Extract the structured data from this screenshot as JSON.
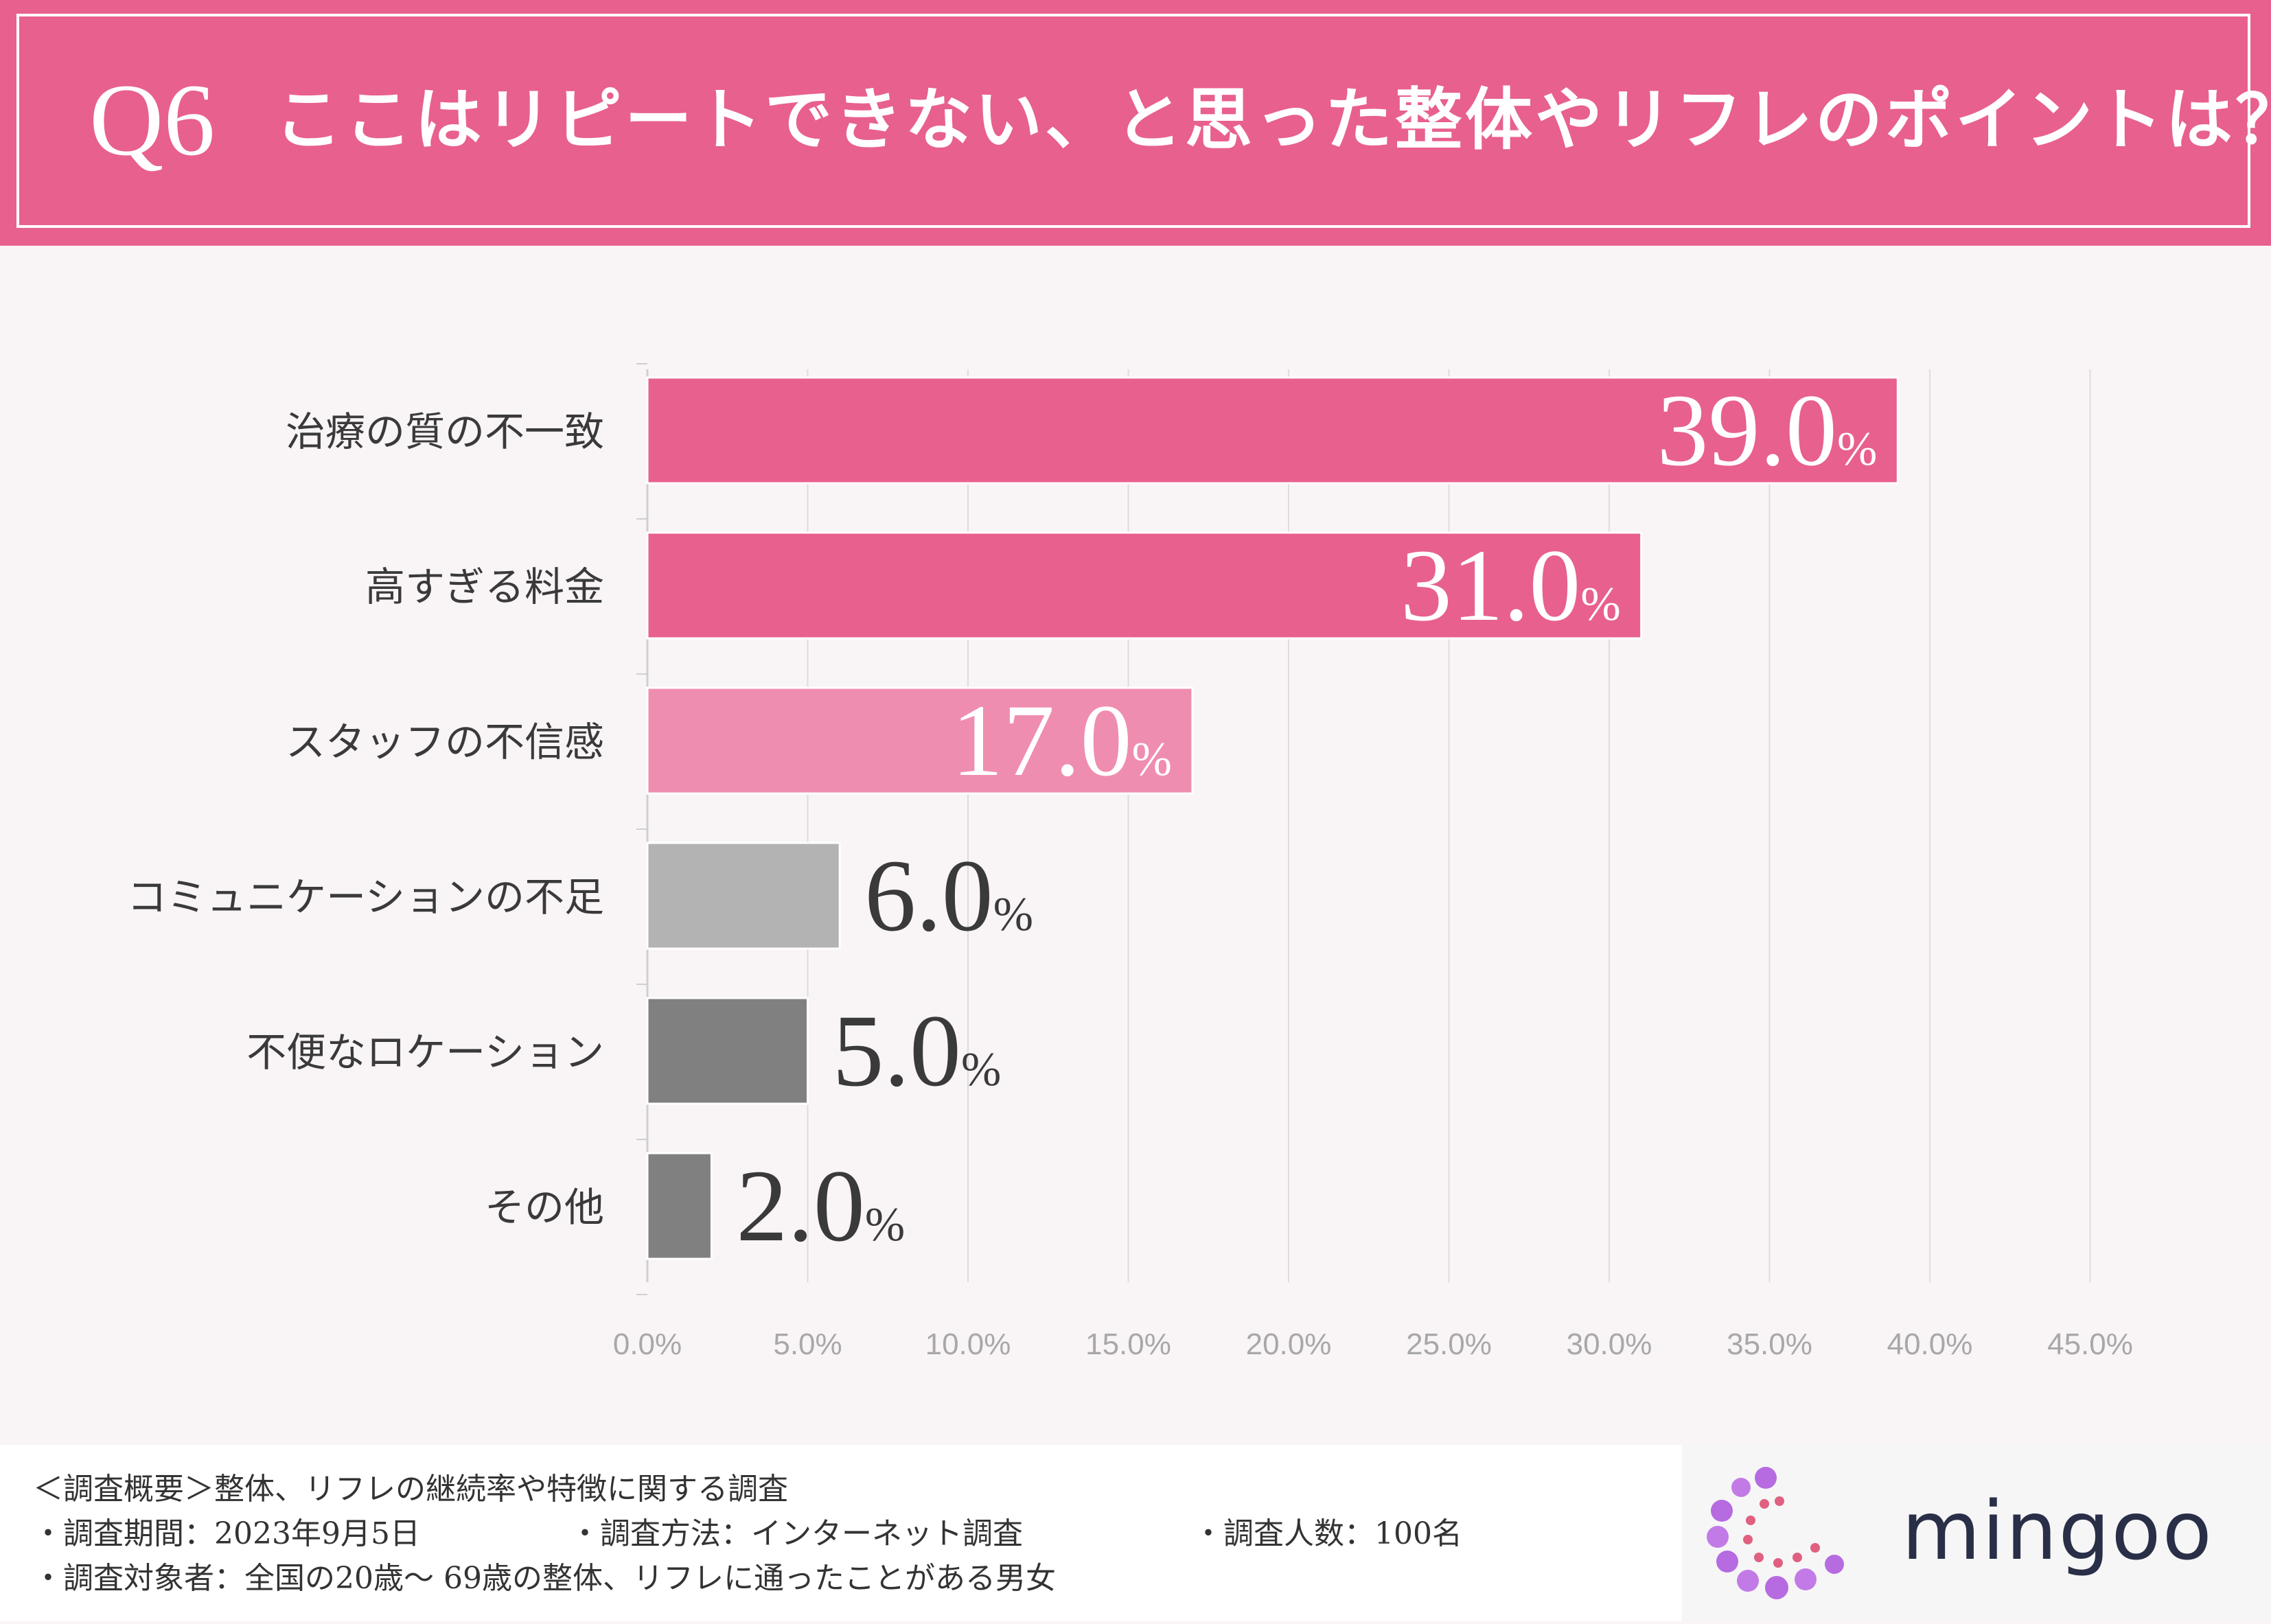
{
  "header": {
    "question_number": "Q6",
    "question_text": "ここはリピートできない、と思った整体やリフレのポイントは？"
  },
  "chart_data": {
    "type": "bar",
    "orientation": "horizontal",
    "categories": [
      "治療の質の不一致",
      "高すぎる料金",
      "スタッフの不信感",
      "コミュニケーションの不足",
      "不便なロケーション",
      "その他"
    ],
    "values": [
      39.0,
      31.0,
      17.0,
      6.0,
      5.0,
      2.0
    ],
    "value_labels": [
      "39.0",
      "31.0",
      "17.0",
      "6.0",
      "5.0",
      "2.0"
    ],
    "value_unit": "%",
    "bar_colors": [
      "#e8608d",
      "#e8608d",
      "#ef8db0",
      "#b3b3b3",
      "#808080",
      "#808080"
    ],
    "xlim": [
      0,
      45
    ],
    "xticks": [
      0,
      5,
      10,
      15,
      20,
      25,
      30,
      35,
      40,
      45
    ],
    "xtick_labels": [
      "0.0%",
      "5.0%",
      "10.0%",
      "15.0%",
      "20.0%",
      "25.0%",
      "30.0%",
      "35.0%",
      "40.0%",
      "45.0%"
    ],
    "grid": "vertical"
  },
  "footer": {
    "overview": "＜調査概要＞整体、リフレの継続率や特徴に関する調査",
    "period": "・調査期間：2023年9月5日",
    "method": "・調査方法：インターネット調査",
    "count": "・調査人数：100名",
    "target": "・調査対象者：全国の20歳〜 69歳の整体、リフレに通ったことがある男女",
    "brand_name": "mingoo"
  }
}
